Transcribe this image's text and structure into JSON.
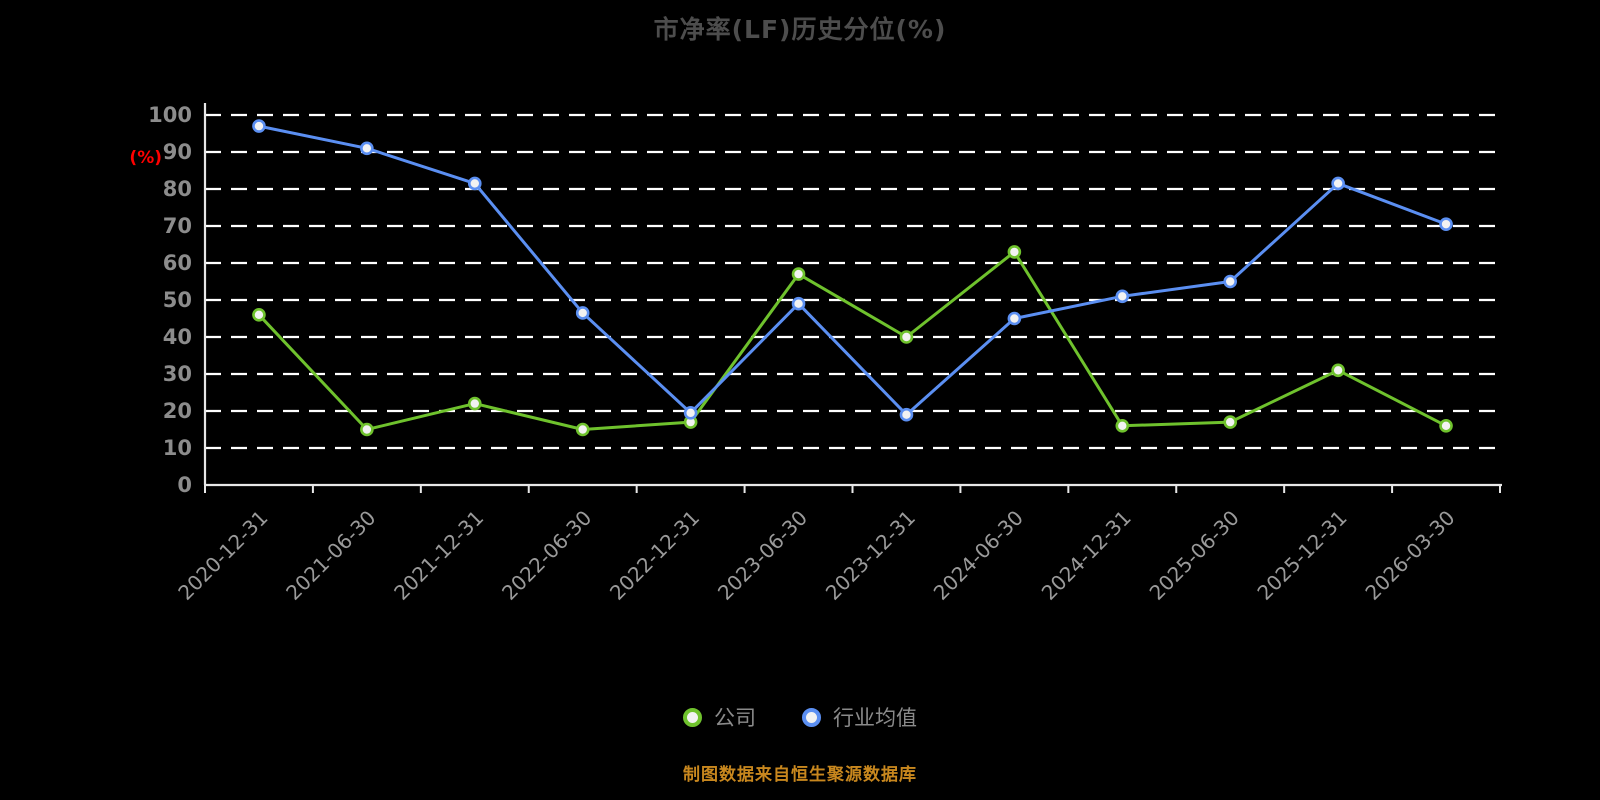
{
  "chart_data": {
    "type": "line",
    "title": "市净率(LF)历史分位(%)",
    "ylabel": "(%)",
    "source_note": "制图数据来自恒生聚源数据库",
    "ylim": [
      0,
      100
    ],
    "yticks": [
      0,
      10,
      20,
      30,
      40,
      50,
      60,
      70,
      80,
      90,
      100
    ],
    "grid": "dashed-horizontal",
    "legend_position": "bottom",
    "categories": [
      "2020-12-31",
      "2021-06-30",
      "2021-12-31",
      "2022-06-30",
      "2022-12-31",
      "2023-06-30",
      "2023-12-31",
      "2024-06-30",
      "2024-12-31",
      "2025-06-30",
      "2025-12-31",
      "2026-03-30"
    ],
    "series": [
      {
        "name": "公司",
        "color": "#6fc22d",
        "values": [
          46,
          15,
          22,
          15,
          17,
          57,
          40,
          63,
          16,
          17,
          31,
          16
        ]
      },
      {
        "name": "行业均值",
        "color": "#5b8ff2",
        "values": [
          97,
          91,
          81.5,
          46.5,
          19.5,
          49,
          19,
          45,
          51,
          55,
          81.5,
          70.5
        ]
      }
    ],
    "colors": {
      "background": "#000000",
      "gridline": "#ffffff",
      "axis": "#e8e8e8",
      "tick_text": "#8c8c8c",
      "title_text": "#4d4d4d",
      "ylabel_text": "#ff0000",
      "footer_text": "#c8871e"
    }
  }
}
